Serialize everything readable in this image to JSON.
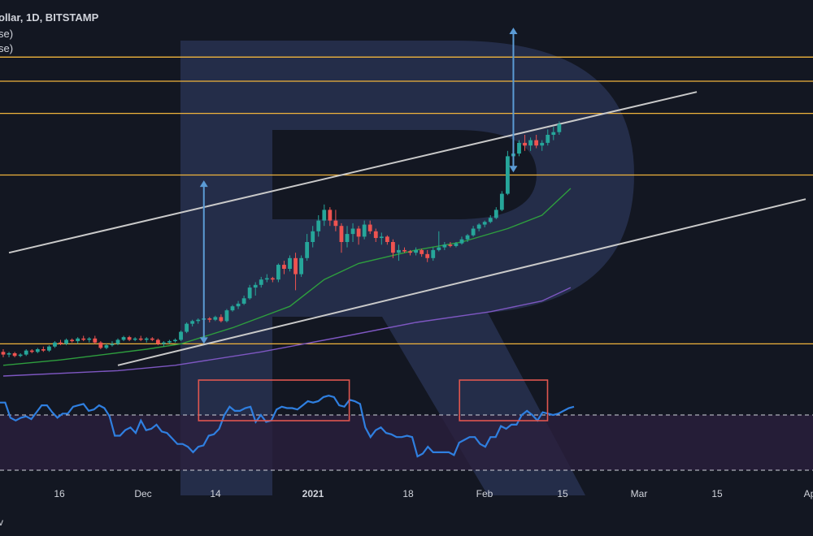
{
  "legend": {
    "symbol_line": "ollar, 1D, BITSTAMP",
    "line2": "se)",
    "line3": "se)"
  },
  "corner_label": "v",
  "colors": {
    "background": "#131722",
    "bull": "#26a69a",
    "bear": "#ef5350",
    "level_line": "#f0b43c",
    "channel_line": "#c9c9c9",
    "arrow": "#5b9bd5",
    "ma_fast": "#2e9e3e",
    "ma_slow": "#7e57c2",
    "rsi_line": "#2f7fe0",
    "highlight_box": "#e0564f",
    "watermark": "#3a4a7a",
    "rsi_band": "#2a1f3d"
  },
  "chart_data": {
    "type": "candlestick",
    "title": "ollar, 1D, BITSTAMP",
    "x_axis": {
      "tick_labels": [
        "16",
        "Dec",
        "14",
        "2021",
        "18",
        "Feb",
        "15",
        "Mar",
        "15",
        "Ap"
      ],
      "bold_ticks": [
        "2021"
      ]
    },
    "candles": {
      "order": "chronological",
      "ohlc": [
        [
          0.09,
          0.1,
          0.07,
          0.08
        ],
        [
          0.08,
          0.09,
          0.07,
          0.085
        ],
        [
          0.085,
          0.09,
          0.07,
          0.075
        ],
        [
          0.075,
          0.085,
          0.07,
          0.08
        ],
        [
          0.08,
          0.1,
          0.075,
          0.095
        ],
        [
          0.095,
          0.1,
          0.085,
          0.09
        ],
        [
          0.09,
          0.105,
          0.085,
          0.1
        ],
        [
          0.1,
          0.11,
          0.09,
          0.095
        ],
        [
          0.095,
          0.115,
          0.09,
          0.11
        ],
        [
          0.11,
          0.13,
          0.105,
          0.125
        ],
        [
          0.125,
          0.135,
          0.115,
          0.12
        ],
        [
          0.12,
          0.14,
          0.115,
          0.135
        ],
        [
          0.135,
          0.14,
          0.125,
          0.13
        ],
        [
          0.13,
          0.145,
          0.12,
          0.14
        ],
        [
          0.14,
          0.15,
          0.13,
          0.135
        ],
        [
          0.135,
          0.145,
          0.125,
          0.14
        ],
        [
          0.14,
          0.15,
          0.12,
          0.125
        ],
        [
          0.125,
          0.13,
          0.1,
          0.105
        ],
        [
          0.105,
          0.12,
          0.1,
          0.115
        ],
        [
          0.115,
          0.13,
          0.11,
          0.12
        ],
        [
          0.12,
          0.14,
          0.115,
          0.135
        ],
        [
          0.135,
          0.15,
          0.13,
          0.145
        ],
        [
          0.145,
          0.15,
          0.13,
          0.135
        ],
        [
          0.135,
          0.145,
          0.13,
          0.14
        ],
        [
          0.14,
          0.15,
          0.13,
          0.135
        ],
        [
          0.135,
          0.145,
          0.125,
          0.14
        ],
        [
          0.14,
          0.145,
          0.13,
          0.135
        ],
        [
          0.135,
          0.14,
          0.115,
          0.12
        ],
        [
          0.12,
          0.13,
          0.11,
          0.125
        ],
        [
          0.125,
          0.135,
          0.12,
          0.13
        ],
        [
          0.13,
          0.14,
          0.125,
          0.135
        ],
        [
          0.135,
          0.17,
          0.13,
          0.165
        ],
        [
          0.165,
          0.2,
          0.16,
          0.195
        ],
        [
          0.195,
          0.21,
          0.185,
          0.205
        ],
        [
          0.205,
          0.215,
          0.195,
          0.21
        ],
        [
          0.21,
          0.225,
          0.2,
          0.215
        ],
        [
          0.215,
          0.22,
          0.2,
          0.21
        ],
        [
          0.21,
          0.225,
          0.205,
          0.22
        ],
        [
          0.22,
          0.23,
          0.2,
          0.205
        ],
        [
          0.205,
          0.25,
          0.2,
          0.245
        ],
        [
          0.245,
          0.265,
          0.24,
          0.26
        ],
        [
          0.26,
          0.28,
          0.25,
          0.27
        ],
        [
          0.27,
          0.3,
          0.265,
          0.29
        ],
        [
          0.29,
          0.34,
          0.285,
          0.33
        ],
        [
          0.33,
          0.35,
          0.3,
          0.34
        ],
        [
          0.34,
          0.37,
          0.33,
          0.36
        ],
        [
          0.36,
          0.38,
          0.35,
          0.365
        ],
        [
          0.365,
          0.37,
          0.35,
          0.36
        ],
        [
          0.36,
          0.42,
          0.35,
          0.415
        ],
        [
          0.415,
          0.43,
          0.38,
          0.4
        ],
        [
          0.4,
          0.45,
          0.39,
          0.44
        ],
        [
          0.44,
          0.46,
          0.32,
          0.38
        ],
        [
          0.38,
          0.45,
          0.37,
          0.44
        ],
        [
          0.44,
          0.53,
          0.43,
          0.5
        ],
        [
          0.5,
          0.56,
          0.48,
          0.54
        ],
        [
          0.54,
          0.6,
          0.52,
          0.58
        ],
        [
          0.58,
          0.64,
          0.56,
          0.62
        ],
        [
          0.62,
          0.63,
          0.56,
          0.58
        ],
        [
          0.58,
          0.62,
          0.54,
          0.56
        ],
        [
          0.56,
          0.57,
          0.46,
          0.5
        ],
        [
          0.5,
          0.56,
          0.48,
          0.53
        ],
        [
          0.53,
          0.57,
          0.5,
          0.55
        ],
        [
          0.55,
          0.56,
          0.49,
          0.52
        ],
        [
          0.52,
          0.58,
          0.51,
          0.565
        ],
        [
          0.565,
          0.58,
          0.53,
          0.54
        ],
        [
          0.54,
          0.55,
          0.5,
          0.515
        ],
        [
          0.515,
          0.535,
          0.49,
          0.52
        ],
        [
          0.52,
          0.525,
          0.49,
          0.5
        ],
        [
          0.5,
          0.51,
          0.44,
          0.46
        ],
        [
          0.46,
          0.49,
          0.43,
          0.47
        ],
        [
          0.47,
          0.48,
          0.46,
          0.465
        ],
        [
          0.465,
          0.47,
          0.45,
          0.46
        ],
        [
          0.46,
          0.48,
          0.45,
          0.47
        ],
        [
          0.47,
          0.475,
          0.445,
          0.455
        ],
        [
          0.455,
          0.47,
          0.425,
          0.44
        ],
        [
          0.44,
          0.48,
          0.43,
          0.47
        ],
        [
          0.47,
          0.54,
          0.465,
          0.48
        ],
        [
          0.48,
          0.5,
          0.47,
          0.49
        ],
        [
          0.49,
          0.5,
          0.48,
          0.485
        ],
        [
          0.485,
          0.5,
          0.48,
          0.495
        ],
        [
          0.495,
          0.52,
          0.49,
          0.51
        ],
        [
          0.51,
          0.53,
          0.5,
          0.525
        ],
        [
          0.525,
          0.56,
          0.52,
          0.55
        ],
        [
          0.55,
          0.57,
          0.54,
          0.565
        ],
        [
          0.565,
          0.58,
          0.555,
          0.575
        ],
        [
          0.575,
          0.6,
          0.57,
          0.59
        ],
        [
          0.59,
          0.63,
          0.585,
          0.62
        ],
        [
          0.62,
          0.69,
          0.615,
          0.68
        ],
        [
          0.68,
          0.84,
          0.675,
          0.82
        ],
        [
          0.82,
          0.86,
          0.8,
          0.83
        ],
        [
          0.83,
          0.88,
          0.82,
          0.87
        ],
        [
          0.87,
          0.9,
          0.84,
          0.86
        ],
        [
          0.86,
          0.89,
          0.84,
          0.88
        ],
        [
          0.88,
          0.9,
          0.85,
          0.86
        ],
        [
          0.86,
          0.88,
          0.84,
          0.87
        ],
        [
          0.87,
          0.92,
          0.86,
          0.9
        ],
        [
          0.9,
          0.93,
          0.88,
          0.91
        ],
        [
          0.91,
          0.95,
          0.9,
          0.94
        ]
      ]
    },
    "moving_averages": [
      {
        "points": [
          [
            0,
            0.04
          ],
          [
            10,
            0.06
          ],
          [
            25,
            0.1
          ],
          [
            31,
            0.12
          ],
          [
            40,
            0.18
          ],
          [
            50,
            0.26
          ],
          [
            56,
            0.36
          ],
          [
            62,
            0.42
          ],
          [
            72,
            0.47
          ],
          [
            80,
            0.5
          ],
          [
            88,
            0.55
          ],
          [
            94,
            0.6
          ],
          [
            99,
            0.7
          ]
        ]
      },
      {
        "points": [
          [
            0,
            0.0
          ],
          [
            20,
            0.02
          ],
          [
            30,
            0.04
          ],
          [
            45,
            0.09
          ],
          [
            60,
            0.15
          ],
          [
            72,
            0.2
          ],
          [
            85,
            0.24
          ],
          [
            94,
            0.28
          ],
          [
            99,
            0.33
          ]
        ]
      }
    ],
    "horizontal_levels": [
      1.19,
      1.1,
      0.98,
      0.75,
      0.12
    ],
    "channel_lines": [
      {
        "from": [
          1,
          0.46
        ],
        "to": [
          121,
          1.06
        ]
      },
      {
        "from": [
          20,
          0.04
        ],
        "to": [
          140,
          0.66
        ]
      }
    ],
    "arrows": [
      {
        "x": 35,
        "from": 0.12,
        "to": 0.73
      },
      {
        "x": 89,
        "from": 0.76,
        "to": 1.3
      }
    ],
    "rsi": {
      "values": [
        79,
        79,
        68,
        66,
        68,
        69,
        67,
        72,
        77,
        77,
        72,
        68,
        71,
        71,
        76,
        77,
        78,
        73,
        74,
        77,
        75,
        69,
        55,
        55,
        59,
        61,
        57,
        66,
        59,
        60,
        63,
        58,
        57,
        53,
        49,
        49,
        47,
        43,
        47,
        48,
        55,
        56,
        60,
        70,
        76,
        73,
        73,
        75,
        76,
        65,
        70,
        65,
        66,
        74,
        76,
        75,
        75,
        74,
        77,
        80,
        79,
        80,
        83,
        84,
        83,
        77,
        76,
        81,
        80,
        78,
        61,
        54,
        59,
        61,
        57,
        56,
        54,
        54,
        55,
        54,
        40,
        42,
        47,
        43,
        43,
        43,
        43,
        41,
        50,
        52,
        54,
        54,
        49,
        47,
        54,
        54,
        62,
        60,
        63,
        63,
        70,
        73,
        70,
        66,
        72,
        71,
        70,
        71,
        73,
        75,
        76
      ],
      "upper_band": 70,
      "lower_band": 30,
      "highlight_ranges": [
        [
          39,
          66
        ],
        [
          89,
          104
        ]
      ]
    }
  }
}
